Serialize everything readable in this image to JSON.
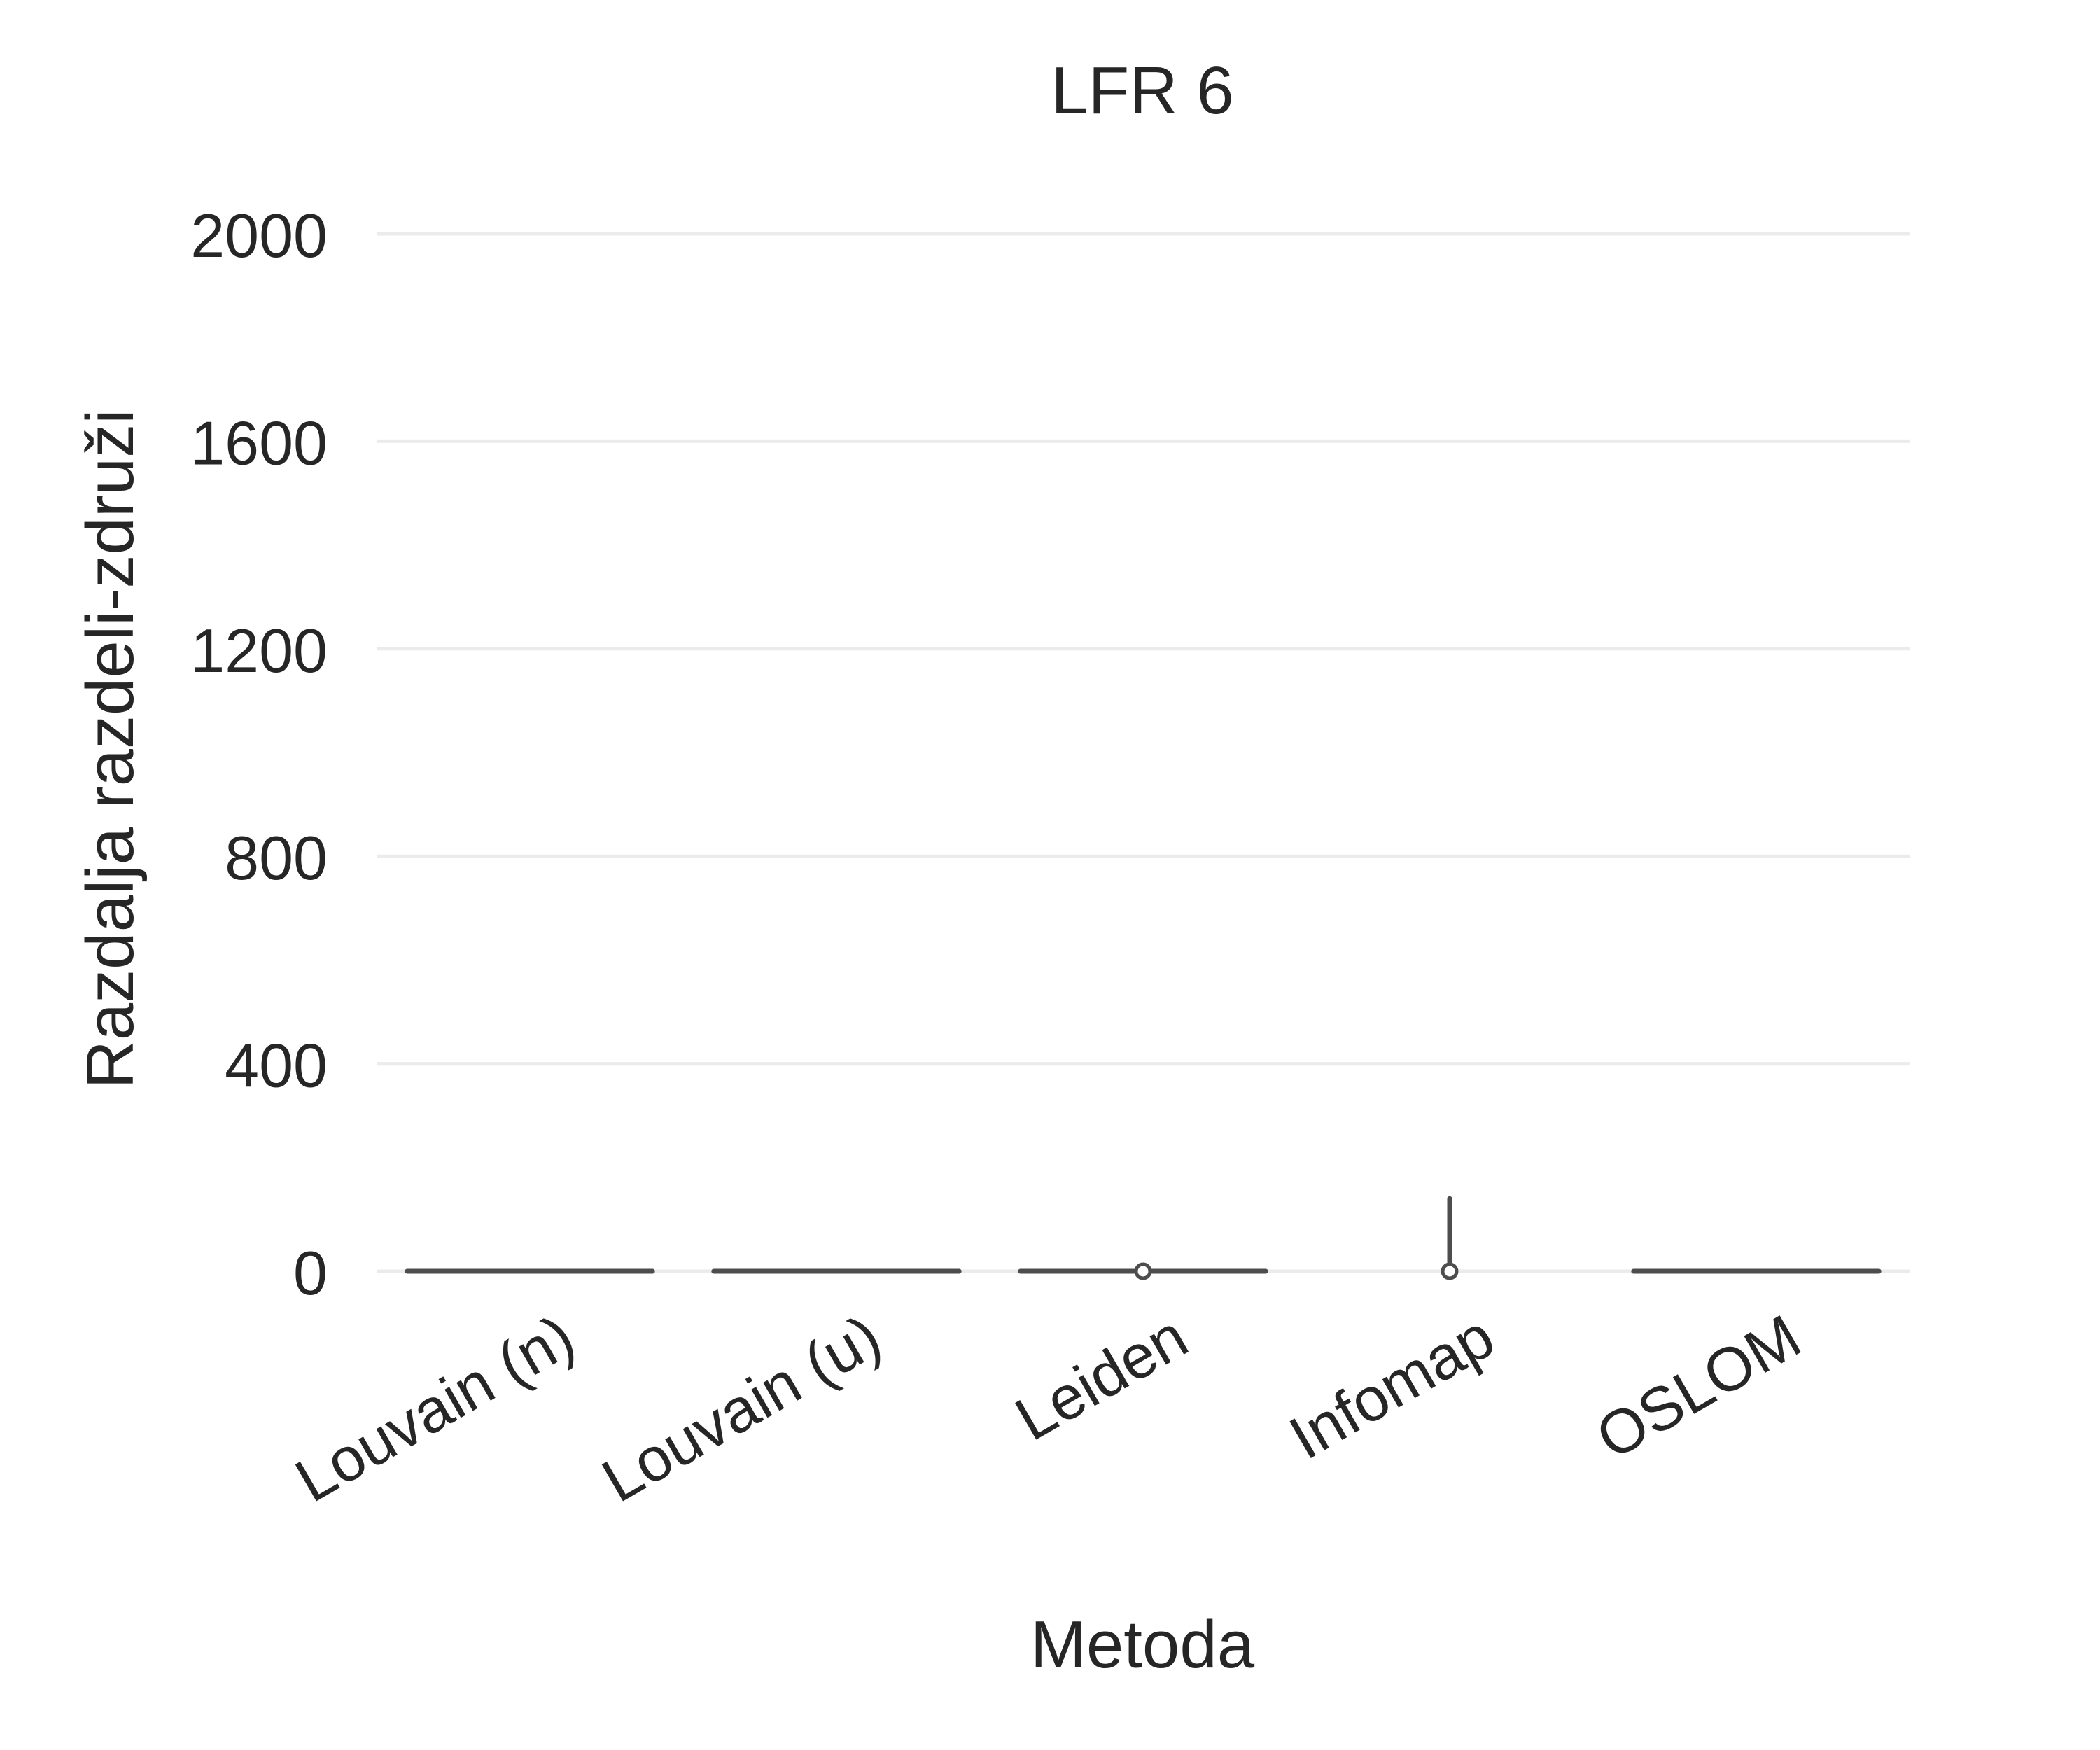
{
  "chart_data": {
    "type": "violin",
    "title": "LFR 6",
    "xlabel": "Metoda",
    "ylabel": "Razdalja razdeli-združi",
    "ylim": [
      -130,
      2060
    ],
    "yticks": [
      0,
      400,
      800,
      1200,
      1600,
      2000
    ],
    "grid": true,
    "categories": [
      "Louvain (n)",
      "Louvain (u)",
      "Leiden",
      "Infomap",
      "OSLOM"
    ],
    "series": [
      {
        "category": "Louvain (n)",
        "min": 0,
        "median": 0,
        "max": 0
      },
      {
        "category": "Louvain (u)",
        "min": 0,
        "median": 0,
        "max": 0
      },
      {
        "category": "Leiden",
        "min": 0,
        "median": 0,
        "max": 0
      },
      {
        "category": "Infomap",
        "min": 0,
        "median": 0,
        "max": 140
      },
      {
        "category": "OSLOM",
        "min": 0,
        "median": 0,
        "max": 0
      }
    ],
    "colors": {
      "mark": "#4d4d4d",
      "grid": "#ebebeb",
      "text": "#262626"
    }
  }
}
